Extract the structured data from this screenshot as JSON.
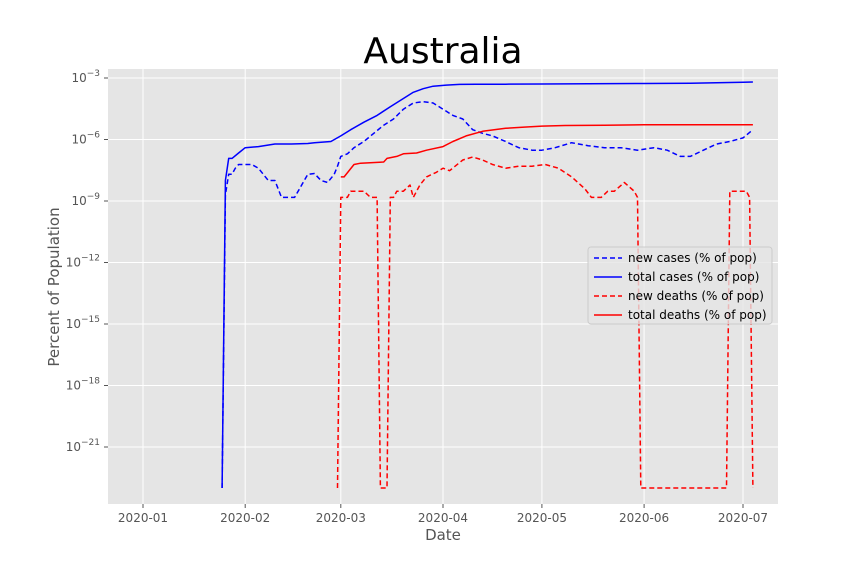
{
  "chart_data": {
    "type": "line",
    "title": "Australia",
    "xlabel": "Date",
    "ylabel": "Percent of Population",
    "yscale": "log",
    "ylim": [
      1e-23,
      0.002
    ],
    "xlim": [
      "2019-12-23",
      "2020-07-11"
    ],
    "grid": true,
    "legend_position": "center-right",
    "x_ticks": [
      {
        "date": "2020-01-01",
        "label": "2020-01"
      },
      {
        "date": "2020-02-01",
        "label": "2020-02"
      },
      {
        "date": "2020-03-01",
        "label": "2020-03"
      },
      {
        "date": "2020-04-01",
        "label": "2020-04"
      },
      {
        "date": "2020-05-01",
        "label": "2020-05"
      },
      {
        "date": "2020-06-01",
        "label": "2020-06"
      },
      {
        "date": "2020-07-01",
        "label": "2020-07"
      }
    ],
    "y_ticks": [
      {
        "value": 1e-21,
        "base": "10",
        "exp": "−21"
      },
      {
        "value": 1e-18,
        "base": "10",
        "exp": "−18"
      },
      {
        "value": 1e-15,
        "base": "10",
        "exp": "−15"
      },
      {
        "value": 1e-12,
        "base": "10",
        "exp": "−12"
      },
      {
        "value": 1e-09,
        "base": "10",
        "exp": "−9"
      },
      {
        "value": 1e-06,
        "base": "10",
        "exp": "−6"
      },
      {
        "value": 0.001,
        "base": "10",
        "exp": "−3"
      }
    ],
    "series": [
      {
        "name": "new cases (% of pop)",
        "color": "#0000ff",
        "dash": true,
        "x": [
          "2020-01-25",
          "2020-01-26",
          "2020-01-27",
          "2020-01-28",
          "2020-01-29",
          "2020-01-30",
          "2020-02-01",
          "2020-02-03",
          "2020-02-05",
          "2020-02-08",
          "2020-02-10",
          "2020-02-12",
          "2020-02-14",
          "2020-02-16",
          "2020-02-20",
          "2020-02-22",
          "2020-02-24",
          "2020-02-26",
          "2020-02-28",
          "2020-02-29",
          "2020-03-01",
          "2020-03-03",
          "2020-03-05",
          "2020-03-08",
          "2020-03-11",
          "2020-03-14",
          "2020-03-17",
          "2020-03-20",
          "2020-03-23",
          "2020-03-26",
          "2020-03-29",
          "2020-04-01",
          "2020-04-04",
          "2020-04-07",
          "2020-04-10",
          "2020-04-13",
          "2020-04-16",
          "2020-04-20",
          "2020-04-24",
          "2020-04-28",
          "2020-05-01",
          "2020-05-05",
          "2020-05-10",
          "2020-05-15",
          "2020-05-20",
          "2020-05-25",
          "2020-05-30",
          "2020-06-04",
          "2020-06-08",
          "2020-06-12",
          "2020-06-15",
          "2020-06-19",
          "2020-06-23",
          "2020-06-27",
          "2020-07-01",
          "2020-07-04"
        ],
        "values": [
          1e-23,
          2e-09,
          2e-08,
          2e-08,
          4e-08,
          6e-08,
          6e-08,
          6e-08,
          4e-08,
          1e-08,
          1e-08,
          1.5e-09,
          1.5e-09,
          1.5e-09,
          2e-08,
          2.2e-08,
          1e-08,
          8e-09,
          2e-08,
          5e-08,
          1.5e-07,
          2e-07,
          4e-07,
          8e-07,
          2e-06,
          5e-06,
          1e-05,
          3e-05,
          6e-05,
          7e-05,
          6e-05,
          3e-05,
          1.5e-05,
          1e-05,
          3e-06,
          2e-06,
          1.5e-06,
          8e-07,
          4e-07,
          3e-07,
          3e-07,
          4e-07,
          7e-07,
          5e-07,
          4e-07,
          4e-07,
          3e-07,
          4e-07,
          3e-07,
          1.5e-07,
          1.5e-07,
          3e-07,
          6e-07,
          8e-07,
          1.2e-06,
          3e-06
        ]
      },
      {
        "name": "total cases (% of pop)",
        "color": "#0000ff",
        "dash": false,
        "x": [
          "2020-01-25",
          "2020-01-26",
          "2020-01-27",
          "2020-01-28",
          "2020-01-30",
          "2020-02-01",
          "2020-02-05",
          "2020-02-10",
          "2020-02-15",
          "2020-02-20",
          "2020-02-22",
          "2020-02-27",
          "2020-03-01",
          "2020-03-04",
          "2020-03-08",
          "2020-03-12",
          "2020-03-16",
          "2020-03-20",
          "2020-03-23",
          "2020-03-26",
          "2020-03-29",
          "2020-04-02",
          "2020-04-06",
          "2020-04-11",
          "2020-04-20",
          "2020-05-01",
          "2020-05-15",
          "2020-06-01",
          "2020-06-15",
          "2020-07-01",
          "2020-07-04"
        ],
        "values": [
          1e-23,
          1e-08,
          1.2e-07,
          1.2e-07,
          2.2e-07,
          4e-07,
          4.5e-07,
          6e-07,
          6e-07,
          6.4e-07,
          7e-07,
          8e-07,
          1.5e-06,
          3e-06,
          7e-06,
          1.5e-05,
          4e-05,
          0.0001,
          0.0002,
          0.0003,
          0.0004,
          0.00045,
          0.000485,
          0.0005,
          0.0005,
          0.00051,
          0.00052,
          0.00054,
          0.00056,
          0.00062,
          0.00064
        ]
      },
      {
        "name": "new deaths (% of pop)",
        "color": "#ff0000",
        "dash": true,
        "x": [
          "2020-02-29",
          "2020-03-01",
          "2020-03-03",
          "2020-03-04",
          "2020-03-08",
          "2020-03-10",
          "2020-03-12",
          "2020-03-13",
          "2020-03-14",
          "2020-03-15",
          "2020-03-16",
          "2020-03-17",
          "2020-03-18",
          "2020-03-20",
          "2020-03-22",
          "2020-03-23",
          "2020-03-25",
          "2020-03-27",
          "2020-03-30",
          "2020-04-01",
          "2020-04-03",
          "2020-04-07",
          "2020-04-10",
          "2020-04-13",
          "2020-04-16",
          "2020-04-20",
          "2020-04-24",
          "2020-04-28",
          "2020-05-02",
          "2020-05-06",
          "2020-05-10",
          "2020-05-14",
          "2020-05-16",
          "2020-05-19",
          "2020-05-21",
          "2020-05-23",
          "2020-05-26",
          "2020-05-29",
          "2020-05-30",
          "2020-05-31",
          "2020-06-01",
          "2020-06-25",
          "2020-06-26",
          "2020-06-27",
          "2020-07-02",
          "2020-07-03",
          "2020-07-04"
        ],
        "values": [
          1e-23,
          1.5e-09,
          1.5e-09,
          3e-09,
          3e-09,
          1.5e-09,
          1.5e-09,
          1e-23,
          1e-23,
          1e-23,
          1.5e-09,
          1.5e-09,
          3e-09,
          3e-09,
          6e-09,
          1.5e-09,
          6e-09,
          1.5e-08,
          2.5e-08,
          4e-08,
          3e-08,
          1e-07,
          1.4e-07,
          1e-07,
          6e-08,
          4e-08,
          5e-08,
          5e-08,
          6e-08,
          4e-08,
          1.5e-08,
          4e-09,
          1.5e-09,
          1.5e-09,
          3e-09,
          3e-09,
          8e-09,
          3e-09,
          1.5e-09,
          1e-23,
          1e-23,
          1e-23,
          1e-23,
          3e-09,
          3e-09,
          1.5e-09,
          1e-23
        ]
      },
      {
        "name": "total deaths (% of pop)",
        "color": "#ff0000",
        "dash": false,
        "x": [
          "2020-03-01",
          "2020-03-02",
          "2020-03-05",
          "2020-03-07",
          "2020-03-14",
          "2020-03-15",
          "2020-03-18",
          "2020-03-20",
          "2020-03-24",
          "2020-03-27",
          "2020-04-01",
          "2020-04-04",
          "2020-04-08",
          "2020-04-13",
          "2020-04-20",
          "2020-04-25",
          "2020-05-01",
          "2020-05-08",
          "2020-05-20",
          "2020-06-01",
          "2020-06-15",
          "2020-07-04"
        ],
        "values": [
          1.5e-08,
          1.5e-08,
          6e-08,
          7e-08,
          8e-08,
          1.2e-07,
          1.5e-07,
          2e-07,
          2.2e-07,
          3e-07,
          4.5e-07,
          8e-07,
          1.5e-06,
          2.5e-06,
          3.5e-06,
          4e-06,
          4.5e-06,
          4.8e-06,
          5e-06,
          5.2e-06,
          5.3e-06,
          5.3e-06
        ]
      }
    ]
  }
}
